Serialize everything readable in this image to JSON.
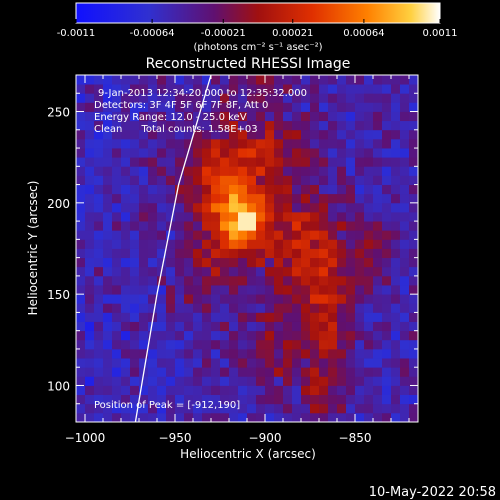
{
  "colorbar": {
    "ticks": [
      "-0.0011",
      "-0.00064",
      "-0.00021",
      "0.00021",
      "0.00064",
      "0.0011"
    ],
    "tick_values": [
      -0.0011,
      -0.00064,
      -0.00021,
      0.00021,
      0.00064,
      0.0011
    ],
    "units": "(photons cm⁻² s⁻¹ asec⁻²)",
    "colors": [
      "#1010ff",
      "#3030d0",
      "#601070",
      "#a01010",
      "#e03000",
      "#ff8000",
      "#ffd040",
      "#ffffff"
    ]
  },
  "chart_data": {
    "type": "heatmap",
    "title": "Reconstructed RHESSI Image",
    "xlabel": "Heliocentric X (arcsec)",
    "ylabel": "Heliocentric Y (arcsec)",
    "xlim": [
      -1005,
      -815
    ],
    "ylim": [
      80,
      270
    ],
    "x_ticks": [
      -1000,
      -950,
      -900,
      -850
    ],
    "x_tick_labels": [
      "−1000",
      "−950",
      "−900",
      "−850"
    ],
    "y_ticks": [
      100,
      150,
      200,
      250
    ],
    "y_tick_labels": [
      "100",
      "150",
      "200",
      "250"
    ],
    "annotations": [
      "9-Jan-2013 12:34:20.000 to 12:35:32.000",
      "Detectors: 3F 4F 5F 6F 7F 8F, Att 0",
      "Energy Range: 12.0 - 25.0 keV",
      "Clean      Total counts: 1.58E+03"
    ],
    "peak_label": "Position of Peak = [-912,190]",
    "peak": [
      -912,
      190
    ],
    "limb_curve": [
      [
        -972,
        80
      ],
      [
        -960,
        150
      ],
      [
        -948,
        210
      ],
      [
        -930,
        270
      ]
    ]
  },
  "footer": {
    "timestamp": "10-May-2022 20:58"
  }
}
